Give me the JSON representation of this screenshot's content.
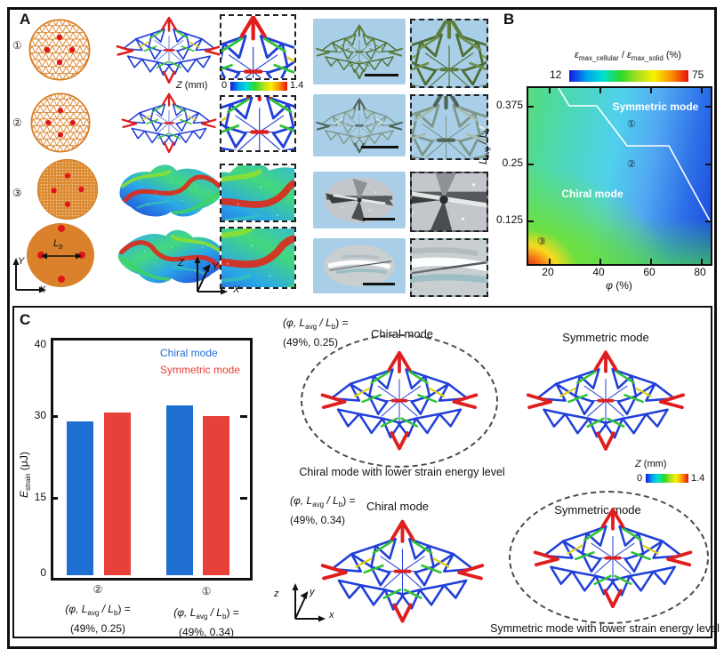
{
  "shared": {
    "modes": {
      "chiral": "Chiral mode",
      "symmetric": "Symmetric mode"
    },
    "markers": {
      "m1": "①",
      "m2": "②",
      "m3": "③"
    },
    "param_label": {
      "p1": "(φ, L",
      "s1": "avg",
      "p2": " / L",
      "s2": "b",
      "p3": ") ="
    },
    "z_colorbar": {
      "name": "Z",
      "unit": " (mm)",
      "min": "0",
      "max": "1.4"
    }
  },
  "panelA": {
    "label": "A",
    "lb": {
      "pre": "L",
      "sub": "b"
    },
    "axes_xy": {
      "x": "X",
      "y": "Y"
    },
    "axes_zyx": {
      "x": "X",
      "y": "Y",
      "z": "Z"
    }
  },
  "panelB": {
    "label": "B",
    "colorbar": {
      "e1": "ε",
      "s1": "max_cellular",
      "slash": " / ",
      "e2": "ε",
      "s2": "max_solid",
      "unit": " (%)",
      "min": "12",
      "max": "75"
    },
    "yticks": [
      "0.375",
      "0.25",
      "0.125"
    ],
    "xticks": [
      "20",
      "40",
      "60",
      "80"
    ],
    "xlabel": {
      "pre": "φ",
      "unit": " (%)"
    },
    "ylabel": {
      "p1": "L",
      "s1": "avg",
      "p2": " / L",
      "s2": "b"
    }
  },
  "panelC": {
    "label": "C",
    "ylabel": {
      "pre": "E",
      "sub": "strain",
      "unit": " (μJ)"
    },
    "groups": [
      {
        "marker": "②",
        "value_line": "(49%, 0.25)"
      },
      {
        "marker": "①",
        "value_line": "(49%, 0.34)"
      }
    ],
    "quadrants": {
      "q1": {
        "value_line": "(49%, 0.25)",
        "caption": "Chiral mode with lower strain energy level"
      },
      "q3": {
        "value_line": "(49%, 0.34)"
      },
      "q4": {
        "caption": "Symmetric mode with lower strain energy level"
      }
    },
    "axes_xyz": {
      "x": "x",
      "y": "y",
      "z": "z"
    }
  },
  "chart_data": [
    {
      "type": "bar",
      "title": "",
      "ylabel": "E_strain (μJ)",
      "yticks": [
        0,
        15,
        30,
        40
      ],
      "ylim": [
        0,
        40
      ],
      "categories": [
        "② (φ, L_avg/L_b) = (49%, 0.25)",
        "① (φ, L_avg/L_b) = (49%, 0.34)"
      ],
      "series": [
        {
          "name": "Chiral mode",
          "color": "#1f6ed2",
          "values": [
            29,
            31.5
          ]
        },
        {
          "name": "Symmetric mode",
          "color": "#e8413a",
          "values": [
            30.5,
            30
          ]
        }
      ],
      "legend_position": "upper right",
      "grid": false
    },
    {
      "type": "heatmap",
      "title": "ε_max_cellular / ε_max_solid (%)",
      "colorbar_range": [
        12,
        75
      ],
      "xlabel": "φ (%)",
      "xticks": [
        20,
        40,
        60,
        80
      ],
      "ylabel": "L_avg / L_b",
      "yticks": [
        0.125,
        0.25,
        0.375
      ],
      "regions": [
        "Chiral mode",
        "Symmetric mode"
      ],
      "markers": [
        {
          "id": "①",
          "phi": 50,
          "ratio": 0.34,
          "region": "Symmetric mode"
        },
        {
          "id": "②",
          "phi": 50,
          "ratio": 0.25,
          "region": "Symmetric mode boundary"
        },
        {
          "id": "③",
          "phi": 15,
          "ratio": 0.07,
          "region": "Chiral mode"
        }
      ],
      "gradient": "blue(low) at high φ / high L ratio to red(high) at low φ / low L ratio"
    }
  ]
}
